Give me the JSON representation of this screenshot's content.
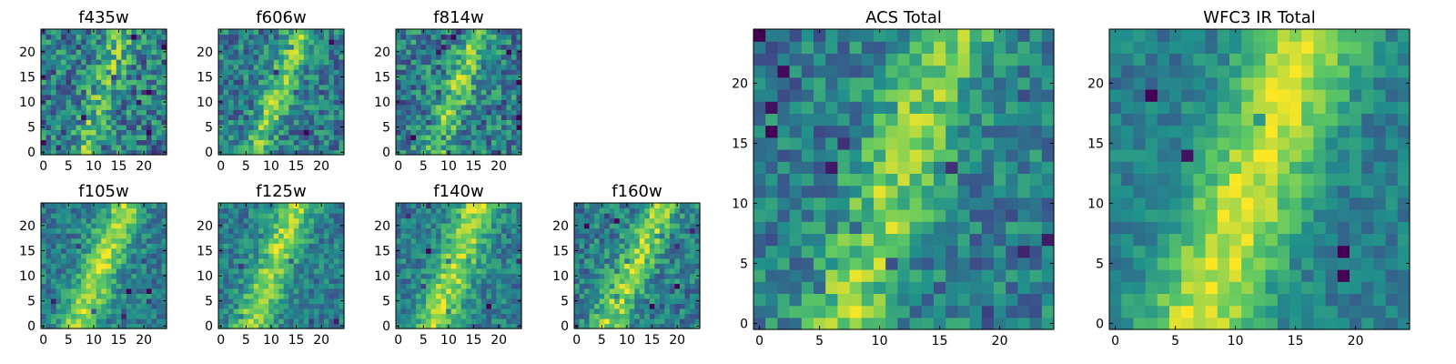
{
  "figure": {
    "colormap": "viridis",
    "colors": [
      "#440154",
      "#3b528b",
      "#21918c",
      "#5ec962",
      "#fde725"
    ]
  },
  "chart_data": [
    {
      "type": "heatmap",
      "title": "f435w",
      "grid_size": 25,
      "xlim": [
        0,
        24
      ],
      "ylim": [
        0,
        24
      ],
      "xticks": [
        "0",
        "5",
        "10",
        "15",
        "20"
      ],
      "yticks": [
        "0",
        "5",
        "10",
        "15",
        "20"
      ],
      "noise": 0.55,
      "band_strength": 0.45,
      "band": {
        "top_x": 16,
        "bottom_x": 8,
        "width": 2.2
      }
    },
    {
      "type": "heatmap",
      "title": "f606w",
      "grid_size": 25,
      "xlim": [
        0,
        24
      ],
      "ylim": [
        0,
        24
      ],
      "xticks": [
        "0",
        "5",
        "10",
        "15",
        "20"
      ],
      "yticks": [
        "0",
        "5",
        "10",
        "15",
        "20"
      ],
      "noise": 0.45,
      "band_strength": 0.6,
      "band": {
        "top_x": 16,
        "bottom_x": 7,
        "width": 2.0
      }
    },
    {
      "type": "heatmap",
      "title": "f814w",
      "grid_size": 25,
      "xlim": [
        0,
        24
      ],
      "ylim": [
        0,
        24
      ],
      "xticks": [
        "0",
        "5",
        "10",
        "15",
        "20"
      ],
      "yticks": [
        "0",
        "5",
        "10",
        "15",
        "20"
      ],
      "noise": 0.5,
      "band_strength": 0.55,
      "band": {
        "top_x": 16,
        "bottom_x": 7,
        "width": 2.2
      }
    },
    {
      "type": "heatmap",
      "title": "f105w",
      "grid_size": 25,
      "xlim": [
        0,
        24
      ],
      "ylim": [
        0,
        24
      ],
      "xticks": [
        "0",
        "5",
        "10",
        "15",
        "20"
      ],
      "yticks": [
        "0",
        "5",
        "10",
        "15",
        "20"
      ],
      "noise": 0.35,
      "band_strength": 0.75,
      "band": {
        "top_x": 16,
        "bottom_x": 7,
        "width": 2.8
      }
    },
    {
      "type": "heatmap",
      "title": "f125w",
      "grid_size": 25,
      "xlim": [
        0,
        24
      ],
      "ylim": [
        0,
        24
      ],
      "xticks": [
        "0",
        "5",
        "10",
        "15",
        "20"
      ],
      "yticks": [
        "0",
        "5",
        "10",
        "15",
        "20"
      ],
      "noise": 0.35,
      "band_strength": 0.7,
      "band": {
        "top_x": 15,
        "bottom_x": 6,
        "width": 2.8
      }
    },
    {
      "type": "heatmap",
      "title": "f140w",
      "grid_size": 25,
      "xlim": [
        0,
        24
      ],
      "ylim": [
        0,
        24
      ],
      "xticks": [
        "0",
        "5",
        "10",
        "15",
        "20"
      ],
      "yticks": [
        "0",
        "5",
        "10",
        "15",
        "20"
      ],
      "noise": 0.35,
      "band_strength": 0.75,
      "band": {
        "top_x": 16,
        "bottom_x": 7,
        "width": 3.0
      }
    },
    {
      "type": "heatmap",
      "title": "f160w",
      "grid_size": 25,
      "xlim": [
        0,
        24
      ],
      "ylim": [
        0,
        24
      ],
      "xticks": [
        "0",
        "5",
        "10",
        "15",
        "20"
      ],
      "yticks": [
        "0",
        "5",
        "10",
        "15",
        "20"
      ],
      "noise": 0.4,
      "band_strength": 0.7,
      "band": {
        "top_x": 17,
        "bottom_x": 6,
        "width": 2.6
      }
    },
    {
      "type": "heatmap",
      "title": "ACS Total",
      "grid_size": 25,
      "xlim": [
        0,
        24
      ],
      "ylim": [
        0,
        24
      ],
      "xticks": [
        "0",
        "5",
        "10",
        "15",
        "20"
      ],
      "yticks": [
        "0",
        "5",
        "10",
        "15",
        "20"
      ],
      "noise": 0.4,
      "band_strength": 0.65,
      "band": {
        "top_x": 16,
        "bottom_x": 7,
        "width": 2.6
      }
    },
    {
      "type": "heatmap",
      "title": "WFC3 IR Total",
      "grid_size": 25,
      "xlim": [
        0,
        24
      ],
      "ylim": [
        0,
        24
      ],
      "xticks": [
        "0",
        "5",
        "10",
        "15",
        "20"
      ],
      "yticks": [
        "0",
        "5",
        "10",
        "15",
        "20"
      ],
      "noise": 0.25,
      "band_strength": 0.85,
      "band": {
        "top_x": 16,
        "bottom_x": 7,
        "width": 3.4
      }
    }
  ]
}
